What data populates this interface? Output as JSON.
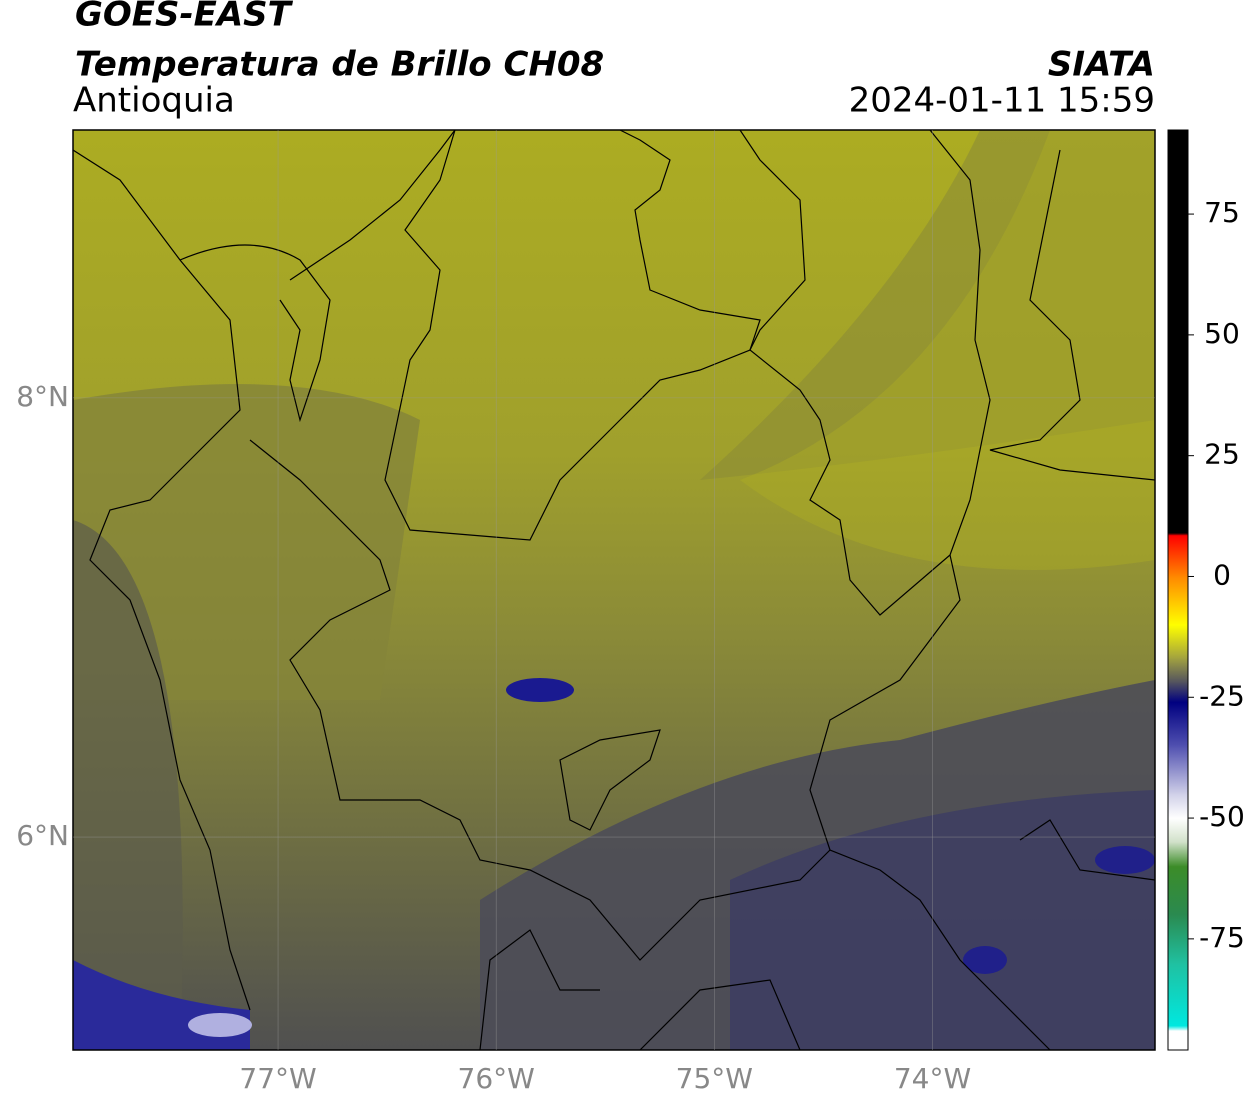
{
  "chart_data": {
    "type": "map",
    "title": "GOES-EAST",
    "subtitle": "Temperatura de Brillo CH08",
    "region": "Antioquia",
    "source": "SIATA",
    "timestamp": "2024-01-11 15:59",
    "xlim": [
      -77.94,
      -72.98
    ],
    "ylim": [
      5.03,
      9.22
    ],
    "xticks": [
      {
        "value": -77,
        "label": "77°W"
      },
      {
        "value": -76,
        "label": "76°W"
      },
      {
        "value": -75,
        "label": "75°W"
      },
      {
        "value": -74,
        "label": "74°W"
      }
    ],
    "yticks": [
      {
        "value": 6,
        "label": "6°N"
      },
      {
        "value": 8,
        "label": "8°N"
      }
    ],
    "grid": true,
    "colorbar": {
      "range": [
        -98,
        92.4
      ],
      "ticks": [
        -75,
        -50,
        -25,
        0,
        25,
        50,
        75
      ],
      "stops": [
        {
          "value": 92.4,
          "color": "#000000"
        },
        {
          "value": 9,
          "color": "#000000"
        },
        {
          "value": 8.5,
          "color": "#ff0000"
        },
        {
          "value": 0,
          "color": "#ff8800"
        },
        {
          "value": -10,
          "color": "#ffff00"
        },
        {
          "value": -17,
          "color": "#a0a040"
        },
        {
          "value": -22,
          "color": "#505060"
        },
        {
          "value": -26,
          "color": "#000080"
        },
        {
          "value": -35,
          "color": "#5050b0"
        },
        {
          "value": -45,
          "color": "#d0d0e8"
        },
        {
          "value": -50,
          "color": "#ffffff"
        },
        {
          "value": -55,
          "color": "#d0e0c8"
        },
        {
          "value": -60,
          "color": "#3c8c28"
        },
        {
          "value": -70,
          "color": "#2a8a50"
        },
        {
          "value": -80,
          "color": "#20c0a0"
        },
        {
          "value": -93,
          "color": "#00e8e0"
        },
        {
          "value": -94,
          "color": "#ffffff"
        },
        {
          "value": -98,
          "color": "#ffffff"
        }
      ]
    }
  }
}
